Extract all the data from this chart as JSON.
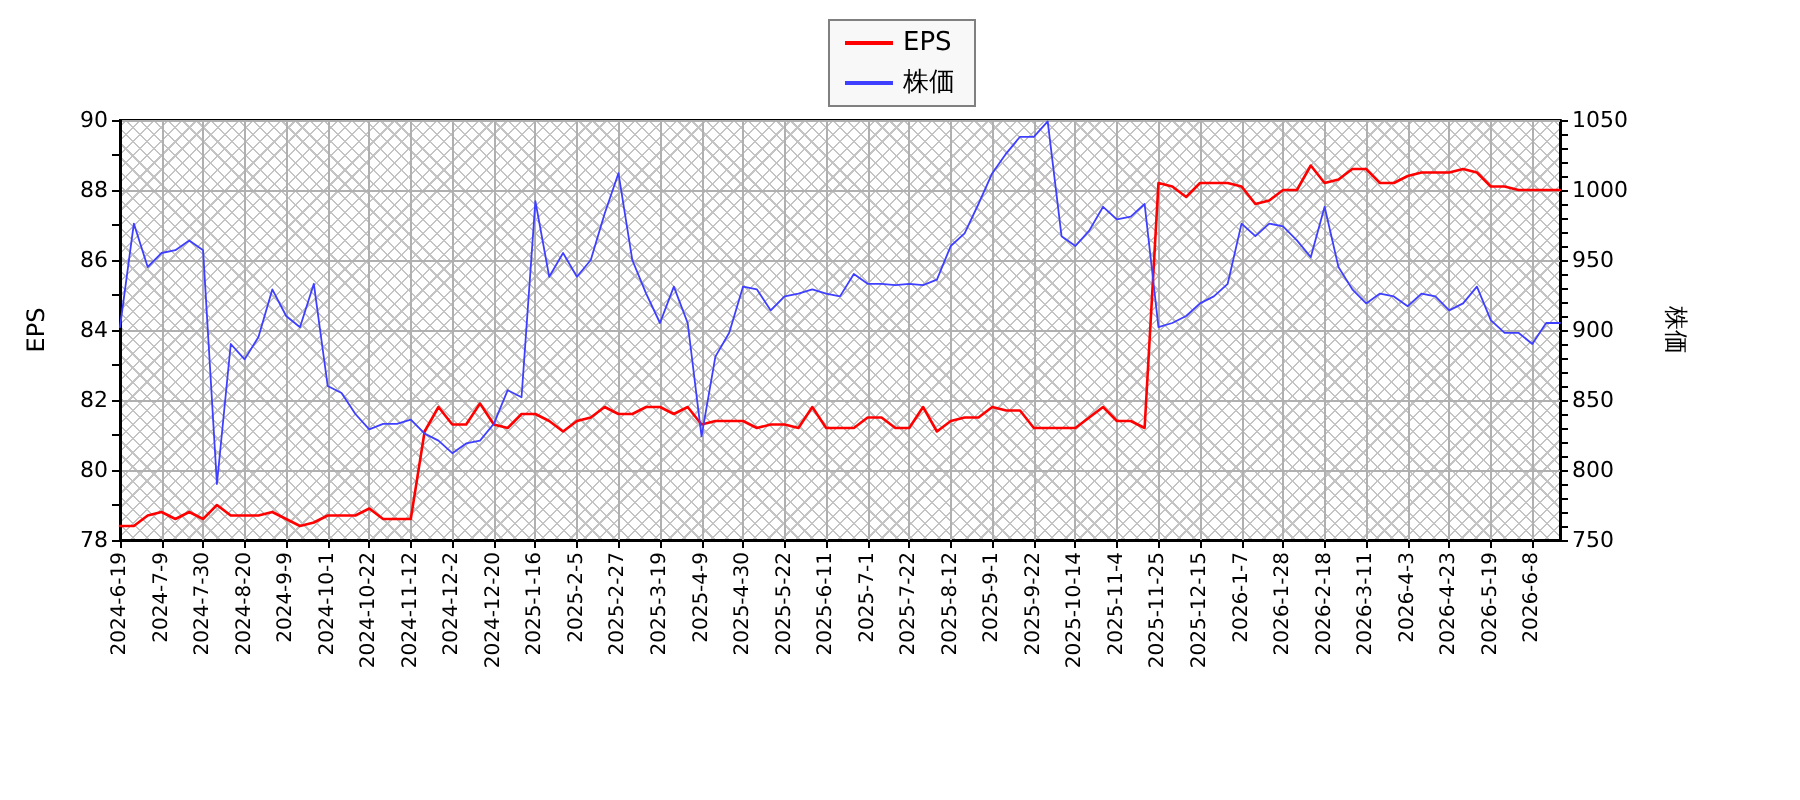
{
  "chart_data": {
    "type": "line",
    "categories": [
      "2024-6-19",
      null,
      null,
      "2024-7-9",
      null,
      null,
      "2024-7-30",
      null,
      null,
      "2024-8-20",
      null,
      null,
      "2024-9-9",
      null,
      null,
      "2024-10-1",
      null,
      null,
      "2024-10-22",
      null,
      null,
      "2024-11-12",
      null,
      null,
      "2024-12-2",
      null,
      null,
      "2024-12-20",
      null,
      null,
      "2025-1-16",
      null,
      null,
      "2025-2-5",
      null,
      null,
      "2025-2-27",
      null,
      null,
      "2025-3-19",
      null,
      null,
      "2025-4-9",
      null,
      null,
      "2025-4-30",
      null,
      null,
      "2025-5-22",
      null,
      null,
      "2025-6-11",
      null,
      null,
      "2025-7-1",
      null,
      null,
      "2025-7-22",
      null,
      null,
      "2025-8-12",
      null,
      null,
      "2025-9-1",
      null,
      null,
      "2025-9-22",
      null,
      null,
      "2025-10-14",
      null,
      null,
      "2025-11-4",
      null,
      null,
      "2025-11-25",
      null,
      null,
      "2025-12-15",
      null,
      null,
      "2026-1-7",
      null,
      null,
      "2026-1-28",
      null,
      null,
      "2026-2-18",
      null,
      null,
      "2026-3-11",
      null,
      null,
      "2026-4-3",
      null,
      null,
      "2026-4-23",
      null,
      null,
      "2026-5-19",
      null,
      null,
      "2026-6-8",
      null,
      null
    ],
    "series": [
      {
        "name": "EPS",
        "color": "#ff0000",
        "values": [
          78.4,
          78.4,
          78.7,
          78.8,
          78.6,
          78.8,
          78.6,
          79.0,
          78.7,
          78.7,
          78.7,
          78.8,
          78.6,
          78.4,
          78.5,
          78.7,
          78.7,
          78.7,
          78.9,
          78.6,
          78.6,
          78.6,
          81.1,
          81.8,
          81.3,
          81.3,
          81.9,
          81.3,
          81.2,
          81.6,
          81.6,
          81.4,
          81.1,
          81.4,
          81.5,
          81.8,
          81.6,
          81.6,
          81.8,
          81.8,
          81.6,
          81.8,
          81.3,
          81.4,
          81.4,
          81.4,
          81.2,
          81.3,
          81.3,
          81.2,
          81.8,
          81.2,
          81.2,
          81.2,
          81.5,
          81.5,
          81.2,
          81.2,
          81.8,
          81.1,
          81.4,
          81.5,
          81.5,
          81.8,
          81.7,
          81.7,
          81.2,
          81.2,
          81.2,
          81.2,
          81.5,
          81.8,
          81.4,
          81.4,
          81.2,
          88.2,
          88.1,
          87.8,
          88.2,
          88.2,
          88.2,
          88.1,
          87.6,
          87.7,
          88.0,
          88.0,
          88.7,
          88.2,
          88.3,
          88.6,
          88.6,
          88.2,
          88.2,
          88.4,
          88.5,
          88.5,
          88.5,
          88.6,
          88.5,
          88.1,
          88.1,
          88.0,
          88.0,
          88.0,
          88.0
        ]
      },
      {
        "name": "株価",
        "color": "#3f3fff",
        "axis": "y2",
        "values": [
          902,
          976,
          945,
          955,
          957,
          964,
          957,
          790,
          890,
          879,
          895,
          929,
          910,
          902,
          933,
          860,
          855,
          840,
          829,
          833,
          833,
          836,
          826,
          821,
          812,
          819,
          821,
          833,
          857,
          852,
          992,
          938,
          955,
          938,
          950,
          983,
          1012,
          950,
          926,
          905,
          931,
          905,
          824,
          881,
          898,
          931,
          929,
          914,
          924,
          926,
          929,
          926,
          924,
          940,
          933,
          933,
          932,
          933,
          932,
          936,
          960,
          969,
          990,
          1012,
          1026,
          1038,
          1038,
          1049,
          967,
          960,
          971,
          988,
          979,
          981,
          990,
          902,
          905,
          910,
          919,
          924,
          933,
          976,
          967,
          976,
          974,
          964,
          952,
          988,
          945,
          929,
          919,
          926,
          924,
          917,
          926,
          924,
          914,
          919,
          931,
          907,
          898,
          898,
          890,
          905,
          905
        ]
      }
    ],
    "ylabel": "EPS",
    "y2label": "株価",
    "ylim": [
      78,
      90
    ],
    "yticks": [
      78,
      {
        "value": 79,
        "label": null
      },
      80,
      {
        "value": 81,
        "label": null
      },
      82,
      {
        "value": 83,
        "label": null
      },
      84,
      {
        "value": 85,
        "label": null
      },
      86,
      {
        "value": 87,
        "label": null
      },
      88,
      {
        "value": 89,
        "label": null
      },
      90
    ],
    "y2lim": [
      750,
      1050
    ],
    "y2ticks": [
      750,
      {
        "value": 760,
        "label": null
      },
      {
        "value": 770,
        "label": null
      },
      {
        "value": 780,
        "label": null
      },
      {
        "value": 790,
        "label": null
      },
      800,
      {
        "value": 810,
        "label": null
      },
      {
        "value": 820,
        "label": null
      },
      {
        "value": 830,
        "label": null
      },
      {
        "value": 840,
        "label": null
      },
      850,
      {
        "value": 860,
        "label": null
      },
      {
        "value": 870,
        "label": null
      },
      {
        "value": 880,
        "label": null
      },
      {
        "value": 890,
        "label": null
      },
      900,
      {
        "value": 910,
        "label": null
      },
      {
        "value": 920,
        "label": null
      },
      {
        "value": 930,
        "label": null
      },
      {
        "value": 940,
        "label": null
      },
      950,
      {
        "value": 960,
        "label": null
      },
      {
        "value": 970,
        "label": null
      },
      {
        "value": 980,
        "label": null
      },
      {
        "value": 990,
        "label": null
      },
      1000,
      {
        "value": 1010,
        "label": null
      },
      {
        "value": 1020,
        "label": null
      },
      {
        "value": 1030,
        "label": null
      },
      {
        "value": 1040,
        "label": null
      },
      1050
    ],
    "grid": true,
    "legend": "top",
    "marker": "none"
  }
}
